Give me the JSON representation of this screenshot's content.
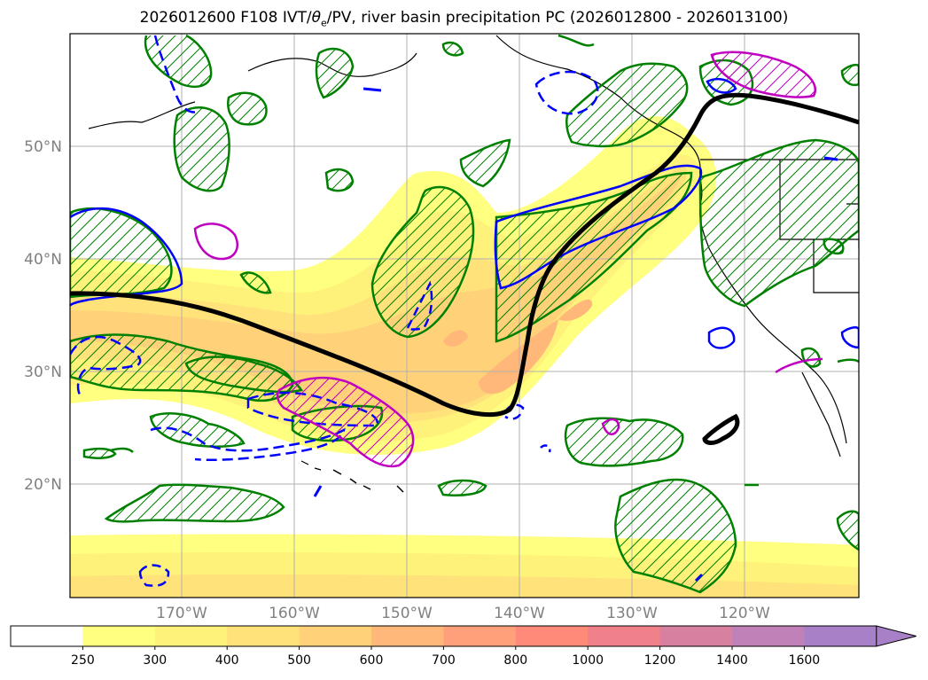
{
  "title": "2026012600 F108 IVT/θe/PV, river basin precipitation PC (2026012800 - 2026013100)",
  "title_parts": {
    "prefix": "2026012600 F108 IVT/",
    "theta": "θ",
    "sub": "e",
    "suffix": "/PV, river basin precipitation PC (2026012800 - 2026013100)"
  },
  "lat_labels": [
    "50°N",
    "40°N",
    "30°N",
    "20°N"
  ],
  "lon_labels": [
    "170°W",
    "160°W",
    "150°W",
    "140°W",
    "130°W",
    "120°W"
  ],
  "colorbar": {
    "levels": [
      "250",
      "300",
      "400",
      "500",
      "600",
      "700",
      "800",
      "1000",
      "1200",
      "1400",
      "1600"
    ],
    "colors": [
      "#ffffff",
      "#ffff80",
      "#fff27a",
      "#ffe27a",
      "#ffd27a",
      "#ffb87a",
      "#ffa07a",
      "#ff8a7a",
      "#f0808a",
      "#d880a0",
      "#c080b8",
      "#a880c8"
    ]
  },
  "colors": {
    "theta_e_contour": "#008000",
    "pv_contour": "#0000ff",
    "precip_pc_contour": "#c000c0",
    "ivt_axis": "#000000",
    "grid": "#b0b0b0"
  }
}
